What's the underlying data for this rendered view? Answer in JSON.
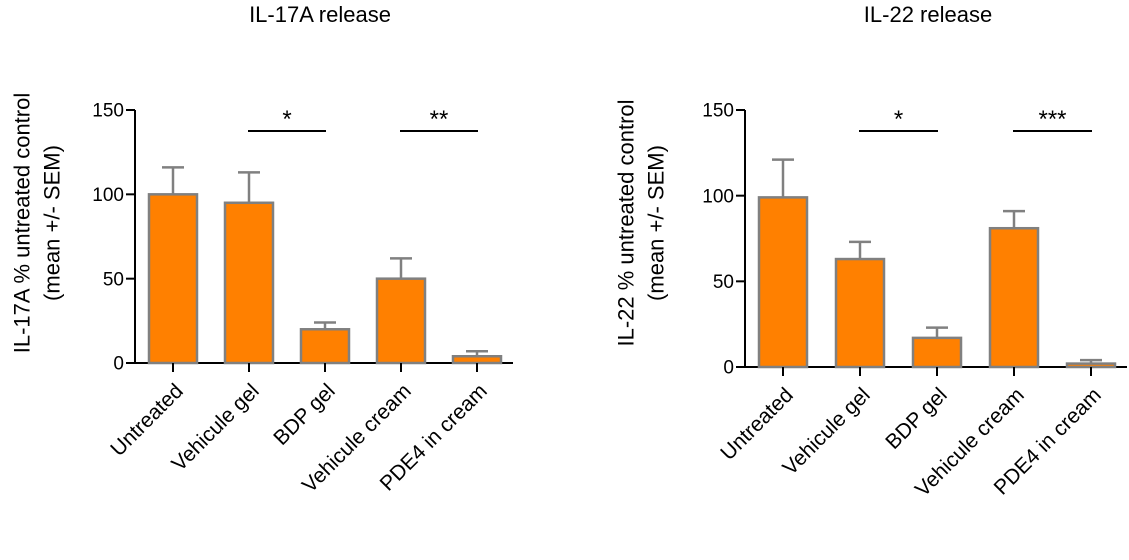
{
  "colors": {
    "bar_fill": "#FF8000",
    "bar_stroke": "#808080",
    "axis": "#000000",
    "error_bar": "#808080"
  },
  "chart_data": [
    {
      "type": "bar",
      "title": "IL-17A release",
      "ylabel_line1": "IL-17A % untreated control",
      "ylabel_line2": "(mean +/- SEM)",
      "categories": [
        "Untreated",
        "Vehicule gel",
        "BDP gel",
        "Vehicule cream",
        "PDE4 in cream"
      ],
      "values": [
        100,
        95,
        20,
        50,
        4
      ],
      "errors": [
        16,
        18,
        4,
        12,
        3
      ],
      "ylim": [
        0,
        150
      ],
      "yticks": [
        0,
        50,
        100,
        150
      ],
      "significance": [
        {
          "from": 1,
          "to": 2,
          "label": "*"
        },
        {
          "from": 3,
          "to": 4,
          "label": "**"
        }
      ]
    },
    {
      "type": "bar",
      "title": "IL-22 release",
      "ylabel_line1": "IL-22 % untreated control",
      "ylabel_line2": "(mean +/- SEM)",
      "categories": [
        "Untreated",
        "Vehicule gel",
        "BDP gel",
        "Vehicule cream",
        "PDE4 in cream"
      ],
      "values": [
        99,
        63,
        17,
        81,
        2
      ],
      "errors": [
        22,
        10,
        6,
        10,
        2
      ],
      "ylim": [
        0,
        150
      ],
      "yticks": [
        0,
        50,
        100,
        150
      ],
      "significance": [
        {
          "from": 1,
          "to": 2,
          "label": "*"
        },
        {
          "from": 3,
          "to": 4,
          "label": "***"
        }
      ]
    }
  ]
}
